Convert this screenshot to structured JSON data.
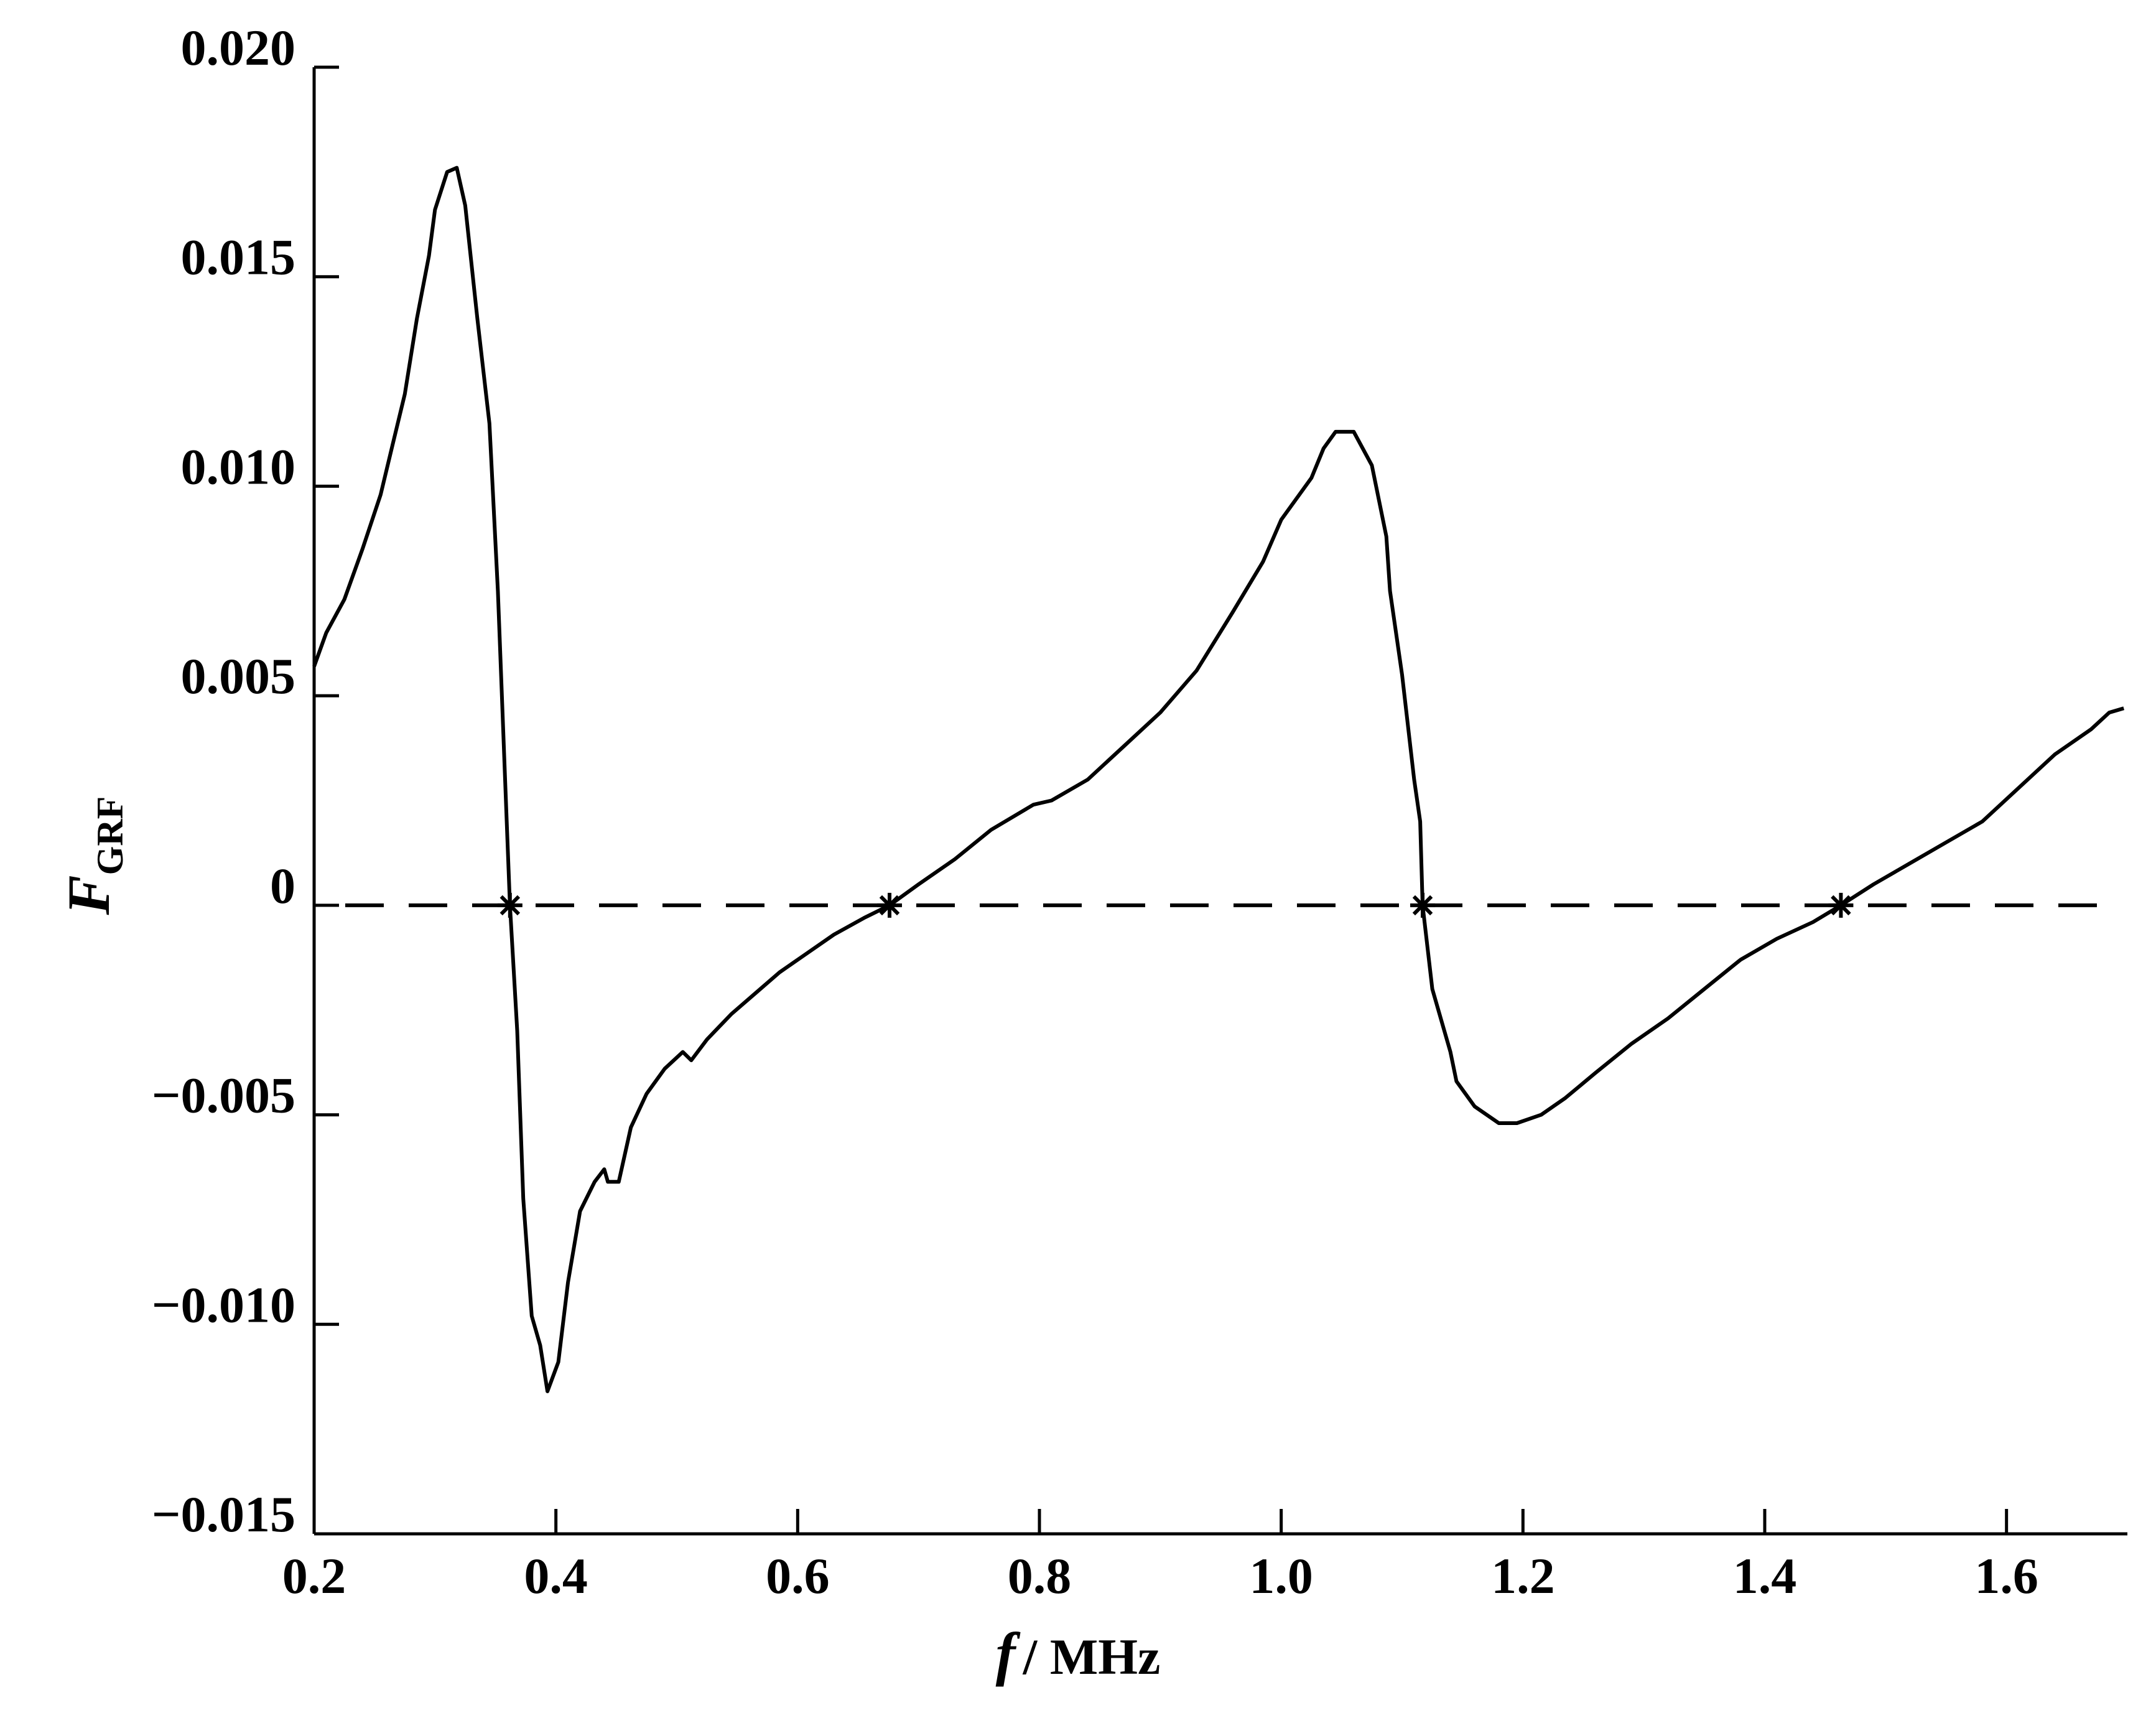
{
  "chart_data": {
    "type": "line",
    "xlabel": {
      "var": "f",
      "unit": "/ MHz"
    },
    "ylabel": {
      "var": "F",
      "sub": "GRF"
    },
    "xlim": [
      0.2,
      1.7
    ],
    "ylim": [
      -0.015,
      0.02
    ],
    "x_ticks": [
      {
        "value": 0.2,
        "label": "0.2"
      },
      {
        "value": 0.4,
        "label": "0.4"
      },
      {
        "value": 0.6,
        "label": "0.6"
      },
      {
        "value": 0.8,
        "label": "0.8"
      },
      {
        "value": 1.0,
        "label": "1.0"
      },
      {
        "value": 1.2,
        "label": "1.2"
      },
      {
        "value": 1.4,
        "label": "1.4"
      },
      {
        "value": 1.6,
        "label": "1.6"
      }
    ],
    "y_ticks": [
      {
        "value": 0.02,
        "label": "0.020"
      },
      {
        "value": 0.015,
        "label": "0.015"
      },
      {
        "value": 0.01,
        "label": "0.010"
      },
      {
        "value": 0.005,
        "label": "0.005"
      },
      {
        "value": 0.0,
        "label": "0"
      },
      {
        "value": -0.005,
        "label": "−0.005"
      },
      {
        "value": -0.01,
        "label": "−0.010"
      },
      {
        "value": -0.015,
        "label": "−0.015"
      }
    ],
    "grid": false,
    "legend": "none",
    "reference_line": {
      "y": 0.0,
      "style": "dashed"
    },
    "zero_crossings": [
      0.362,
      0.676,
      1.117,
      1.463
    ],
    "series": [
      {
        "points": [
          [
            0.2,
            0.0057
          ],
          [
            0.21,
            0.0065
          ],
          [
            0.225,
            0.0073
          ],
          [
            0.24,
            0.0085
          ],
          [
            0.255,
            0.0098
          ],
          [
            0.265,
            0.011
          ],
          [
            0.275,
            0.0122
          ],
          [
            0.285,
            0.014
          ],
          [
            0.295,
            0.0155
          ],
          [
            0.3,
            0.0166
          ],
          [
            0.31,
            0.0175
          ],
          [
            0.318,
            0.0176
          ],
          [
            0.325,
            0.0167
          ],
          [
            0.335,
            0.014
          ],
          [
            0.345,
            0.0115
          ],
          [
            0.352,
            0.0075
          ],
          [
            0.358,
            0.003
          ],
          [
            0.362,
            0.0
          ],
          [
            0.368,
            -0.003
          ],
          [
            0.373,
            -0.007
          ],
          [
            0.38,
            -0.0098
          ],
          [
            0.387,
            -0.0105
          ],
          [
            0.393,
            -0.0116
          ],
          [
            0.402,
            -0.0109
          ],
          [
            0.41,
            -0.009
          ],
          [
            0.42,
            -0.0073
          ],
          [
            0.432,
            -0.0066
          ],
          [
            0.44,
            -0.0063
          ],
          [
            0.443,
            -0.0066
          ],
          [
            0.452,
            -0.0066
          ],
          [
            0.462,
            -0.0053
          ],
          [
            0.475,
            -0.0045
          ],
          [
            0.49,
            -0.0039
          ],
          [
            0.505,
            -0.0035
          ],
          [
            0.512,
            -0.0037
          ],
          [
            0.525,
            -0.0032
          ],
          [
            0.545,
            -0.0026
          ],
          [
            0.565,
            -0.0021
          ],
          [
            0.585,
            -0.0016
          ],
          [
            0.605,
            -0.0012
          ],
          [
            0.63,
            -0.0007
          ],
          [
            0.655,
            -0.0003
          ],
          [
            0.676,
            0.0
          ],
          [
            0.7,
            0.0005
          ],
          [
            0.73,
            0.0011
          ],
          [
            0.76,
            0.0018
          ],
          [
            0.795,
            0.0024
          ],
          [
            0.81,
            0.0025
          ],
          [
            0.84,
            0.003
          ],
          [
            0.87,
            0.0038
          ],
          [
            0.9,
            0.0046
          ],
          [
            0.93,
            0.0056
          ],
          [
            0.96,
            0.007
          ],
          [
            0.985,
            0.0082
          ],
          [
            1.0,
            0.0092
          ],
          [
            1.025,
            0.0102
          ],
          [
            1.035,
            0.0109
          ],
          [
            1.045,
            0.0113
          ],
          [
            1.06,
            0.0113
          ],
          [
            1.075,
            0.0105
          ],
          [
            1.087,
            0.0088
          ],
          [
            1.09,
            0.0075
          ],
          [
            1.1,
            0.0055
          ],
          [
            1.11,
            0.003
          ],
          [
            1.115,
            0.002
          ],
          [
            1.117,
            0.0
          ],
          [
            1.125,
            -0.002
          ],
          [
            1.14,
            -0.0035
          ],
          [
            1.145,
            -0.0042
          ],
          [
            1.16,
            -0.0048
          ],
          [
            1.18,
            -0.0052
          ],
          [
            1.195,
            -0.0052
          ],
          [
            1.215,
            -0.005
          ],
          [
            1.235,
            -0.0046
          ],
          [
            1.26,
            -0.004
          ],
          [
            1.29,
            -0.0033
          ],
          [
            1.32,
            -0.0027
          ],
          [
            1.35,
            -0.002
          ],
          [
            1.38,
            -0.0013
          ],
          [
            1.41,
            -0.0008
          ],
          [
            1.44,
            -0.0004
          ],
          [
            1.463,
            0.0
          ],
          [
            1.49,
            0.0005
          ],
          [
            1.52,
            0.001
          ],
          [
            1.55,
            0.0015
          ],
          [
            1.58,
            0.002
          ],
          [
            1.61,
            0.0028
          ],
          [
            1.64,
            0.0036
          ],
          [
            1.67,
            0.0042
          ],
          [
            1.685,
            0.0046
          ],
          [
            1.697,
            0.0047
          ]
        ]
      }
    ]
  }
}
